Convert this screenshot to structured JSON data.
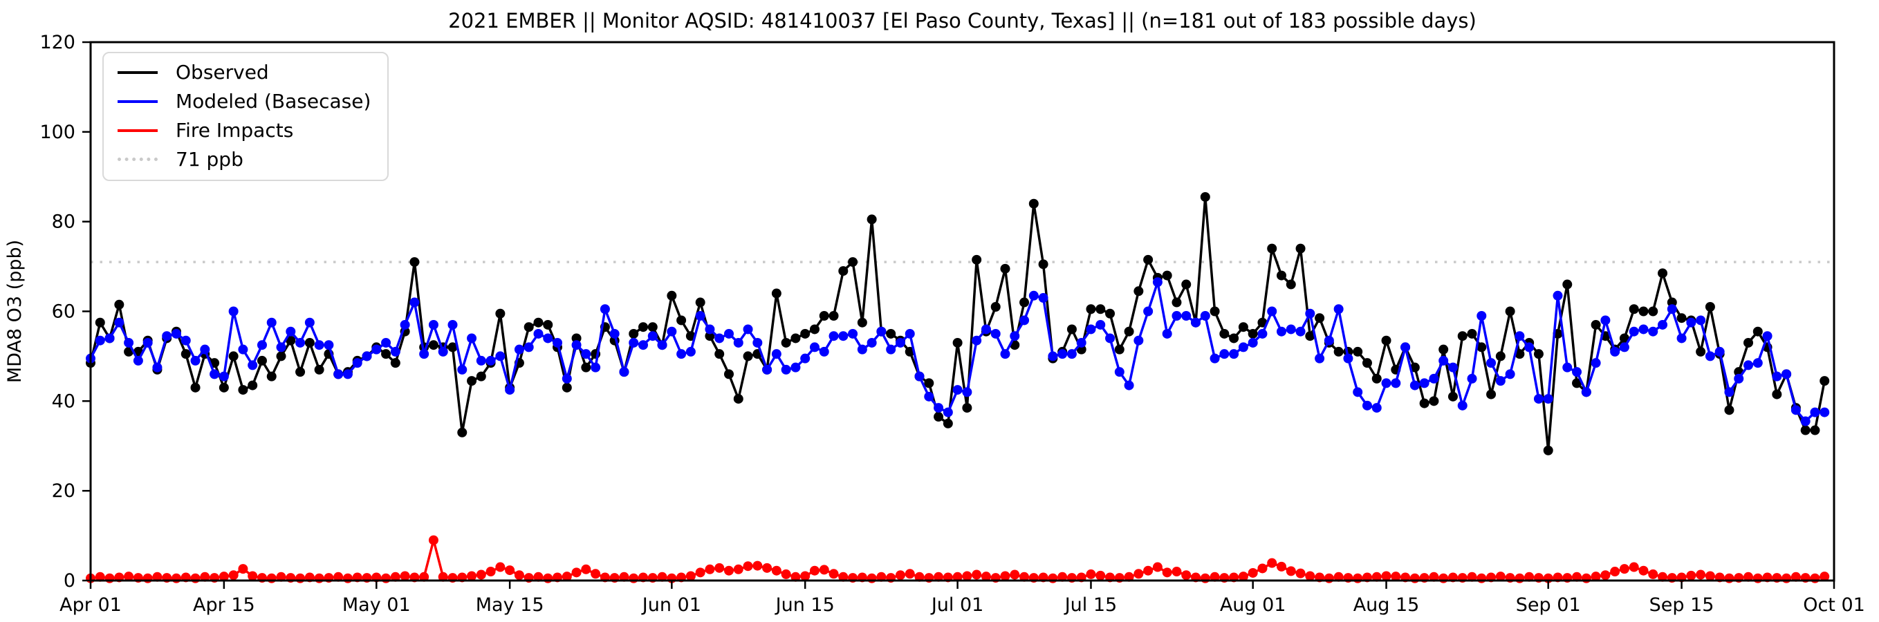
{
  "title": "2021 EMBER || Monitor AQSID: 481410037 [El Paso County, Texas] || (n=181 out of 183 possible days)",
  "axes": {
    "y_label": "MDA8 O3 (ppb)",
    "y_ticks": [
      0,
      20,
      40,
      60,
      80,
      100,
      120
    ],
    "x_ticks": [
      {
        "label": "Apr 01",
        "day": 0
      },
      {
        "label": "Apr 15",
        "day": 14
      },
      {
        "label": "May 01",
        "day": 30
      },
      {
        "label": "May 15",
        "day": 44
      },
      {
        "label": "Jun 01",
        "day": 61
      },
      {
        "label": "Jun 15",
        "day": 75
      },
      {
        "label": "Jul 01",
        "day": 91
      },
      {
        "label": "Jul 15",
        "day": 105
      },
      {
        "label": "Aug 01",
        "day": 122
      },
      {
        "label": "Aug 15",
        "day": 136
      },
      {
        "label": "Sep 01",
        "day": 153
      },
      {
        "label": "Sep 15",
        "day": 167
      },
      {
        "label": "Oct 01",
        "day": 183
      }
    ]
  },
  "legend": [
    {
      "name": "observed",
      "label": "Observed",
      "color": "#000000",
      "style": "solid"
    },
    {
      "name": "modeled-basecase",
      "label": "Modeled (Basecase)",
      "color": "#0000ff",
      "style": "solid"
    },
    {
      "name": "fire-impacts",
      "label": "Fire Impacts",
      "color": "#ff0000",
      "style": "solid"
    },
    {
      "name": "threshold-71ppb",
      "label": "71 ppb",
      "color": "#c9c9c9",
      "style": "dotted"
    }
  ],
  "chart_data": {
    "type": "line",
    "x_unit": "daily (Apr 01 - Sep 30, 2021)",
    "n_days": 183,
    "x_domain_days": 183,
    "ylim": [
      0,
      120
    ],
    "grid": false,
    "legend_position": "upper left",
    "threshold": {
      "label": "71 ppb",
      "value": 71,
      "color": "#c9c9c9"
    },
    "series": [
      {
        "name": "Observed",
        "color": "#000000",
        "values": [
          48.5,
          57.5,
          54,
          61.5,
          51,
          51,
          53.5,
          47,
          54,
          55.5,
          50.5,
          43,
          50.5,
          48.5,
          43,
          50,
          42.5,
          43.5,
          49,
          45.5,
          50,
          53.5,
          46.5,
          53,
          47,
          50.5,
          46,
          46.5,
          49,
          50,
          52,
          50.5,
          48.5,
          55.5,
          71,
          52,
          52.5,
          52,
          52,
          33,
          44.5,
          45.5,
          48.5,
          59.5,
          43,
          48.5,
          56.5,
          57.5,
          57,
          52,
          43,
          54,
          47.5,
          50.5,
          56.5,
          53.5,
          46.5,
          55,
          56.5,
          56.5,
          52.5,
          63.5,
          58,
          54.5,
          62,
          54.5,
          50.5,
          46,
          40.5,
          50,
          50.5,
          47,
          64,
          53,
          54,
          55,
          56,
          59,
          59,
          69,
          71,
          57.5,
          80.5,
          55.5,
          55,
          53.5,
          51,
          45.5,
          44,
          36.5,
          35,
          53,
          38.5,
          71.5,
          55.5,
          61,
          69.5,
          52.5,
          62,
          84,
          70.5,
          49.5,
          51,
          56,
          51.5,
          60.5,
          60.5,
          59.5,
          51.5,
          55.5,
          64.5,
          71.5,
          67.5,
          68,
          62,
          66,
          57.5,
          85.5,
          60,
          55,
          54,
          56.5,
          55,
          57.5,
          74,
          68,
          66,
          74,
          54.5,
          58.5,
          53,
          51,
          51,
          51,
          48.5,
          45,
          53.5,
          47,
          52,
          47.5,
          39.5,
          40,
          51.5,
          41,
          54.5,
          55,
          52,
          41.5,
          50,
          60,
          50.5,
          53,
          50.5,
          29,
          55,
          66,
          44,
          42,
          57,
          54.5,
          51.5,
          54,
          60.5,
          60,
          60,
          68.5,
          62,
          58.5,
          58,
          51,
          61,
          50.5,
          38,
          46.5,
          53,
          55.5,
          52,
          41.5,
          46,
          38.5,
          33.5,
          33.5,
          44.5
        ]
      },
      {
        "name": "Modeled (Basecase)",
        "color": "#0000ff",
        "values": [
          49.5,
          53.5,
          54,
          57.5,
          53,
          49,
          53,
          47.5,
          54.5,
          55,
          53.5,
          49,
          51.5,
          46,
          45.5,
          60,
          51.5,
          48,
          52.5,
          57.5,
          52,
          55.5,
          53,
          57.5,
          52.5,
          52.5,
          46,
          46,
          48.5,
          50,
          51.5,
          53,
          51,
          57,
          62,
          50.5,
          57,
          51,
          57,
          47,
          54,
          49,
          49,
          50,
          42.5,
          51.5,
          52,
          55,
          54,
          53,
          45,
          52.5,
          50.5,
          47.5,
          60.5,
          55,
          46.5,
          53,
          52.5,
          54.5,
          52.5,
          55.5,
          50.5,
          51,
          59,
          56,
          54,
          55,
          53,
          56,
          53,
          47,
          50.5,
          47,
          47.5,
          49.5,
          52,
          51,
          54.5,
          54.5,
          55,
          51.5,
          53,
          55.5,
          51.5,
          53,
          55,
          45.5,
          41,
          38.5,
          37.5,
          42.5,
          42,
          53.5,
          56,
          55,
          50.5,
          54.5,
          58,
          63.5,
          63,
          50,
          50.5,
          50.5,
          53,
          56,
          57,
          54,
          46.5,
          43.5,
          53.5,
          60,
          66.5,
          55,
          59,
          59,
          57.5,
          59,
          49.5,
          50.5,
          50.5,
          52,
          53,
          55,
          60,
          55.5,
          56,
          55.5,
          59.5,
          49.5,
          53.5,
          60.5,
          49.5,
          42,
          39,
          38.5,
          44,
          44,
          52,
          43.5,
          44,
          45,
          49,
          47.5,
          39,
          45,
          59,
          48.5,
          44.5,
          46,
          54.5,
          52,
          40.5,
          40.5,
          63.5,
          47.5,
          46.5,
          42,
          48.5,
          58,
          51,
          52,
          55.5,
          56,
          55.5,
          57,
          60.5,
          54,
          57.5,
          58,
          50,
          51,
          42,
          45,
          48,
          48.5,
          54.5,
          45.5,
          46,
          38,
          35.5,
          37.5,
          37.5
        ]
      },
      {
        "name": "Fire Impacts",
        "color": "#ff0000",
        "values": [
          0.5,
          0.8,
          0.5,
          0.7,
          0.9,
          0.6,
          0.5,
          0.8,
          0.6,
          0.5,
          0.7,
          0.5,
          0.8,
          0.6,
          0.9,
          1.2,
          2.6,
          1.0,
          0.6,
          0.5,
          0.8,
          0.6,
          0.5,
          0.7,
          0.5,
          0.6,
          0.8,
          0.5,
          0.7,
          0.6,
          0.7,
          0.5,
          0.8,
          1.0,
          0.7,
          0.8,
          9.0,
          0.8,
          0.6,
          0.7,
          1.0,
          1.3,
          2.0,
          3.0,
          2.3,
          1.2,
          0.6,
          0.8,
          0.5,
          0.7,
          0.9,
          1.8,
          2.5,
          1.5,
          0.7,
          0.6,
          0.8,
          0.5,
          0.7,
          0.6,
          0.8,
          0.5,
          0.7,
          1.0,
          1.8,
          2.5,
          2.8,
          2.2,
          2.5,
          3.2,
          3.3,
          2.8,
          2.2,
          1.4,
          0.8,
          1.0,
          2.2,
          2.4,
          1.5,
          0.8,
          0.6,
          0.7,
          0.5,
          0.8,
          0.6,
          1.2,
          1.5,
          0.8,
          0.6,
          0.8,
          0.7,
          0.8,
          1.0,
          1.3,
          0.9,
          0.6,
          1.0,
          1.3,
          0.8,
          0.6,
          0.7,
          0.5,
          0.8,
          0.6,
          0.7,
          1.4,
          1.1,
          0.7,
          0.6,
          0.8,
          1.5,
          2.2,
          3.0,
          1.8,
          2.0,
          1.2,
          0.7,
          0.5,
          0.8,
          0.6,
          0.7,
          0.9,
          1.7,
          2.7,
          3.9,
          3.1,
          2.1,
          1.6,
          1.0,
          0.7,
          0.5,
          0.8,
          0.6,
          0.5,
          0.7,
          0.8,
          1.0,
          0.9,
          0.7,
          0.5,
          0.6,
          0.8,
          0.5,
          0.7,
          0.6,
          0.8,
          0.5,
          0.7,
          0.9,
          0.6,
          0.5,
          0.8,
          0.6,
          0.5,
          0.7,
          0.6,
          0.8,
          0.5,
          0.9,
          1.2,
          2.0,
          2.6,
          3.0,
          2.2,
          1.4,
          0.8,
          0.6,
          0.7,
          1.1,
          1.3,
          1.0,
          0.7,
          0.5,
          0.6,
          0.8,
          0.5,
          0.7,
          0.6,
          0.5,
          0.8,
          0.6,
          0.5,
          0.9
        ]
      }
    ]
  }
}
